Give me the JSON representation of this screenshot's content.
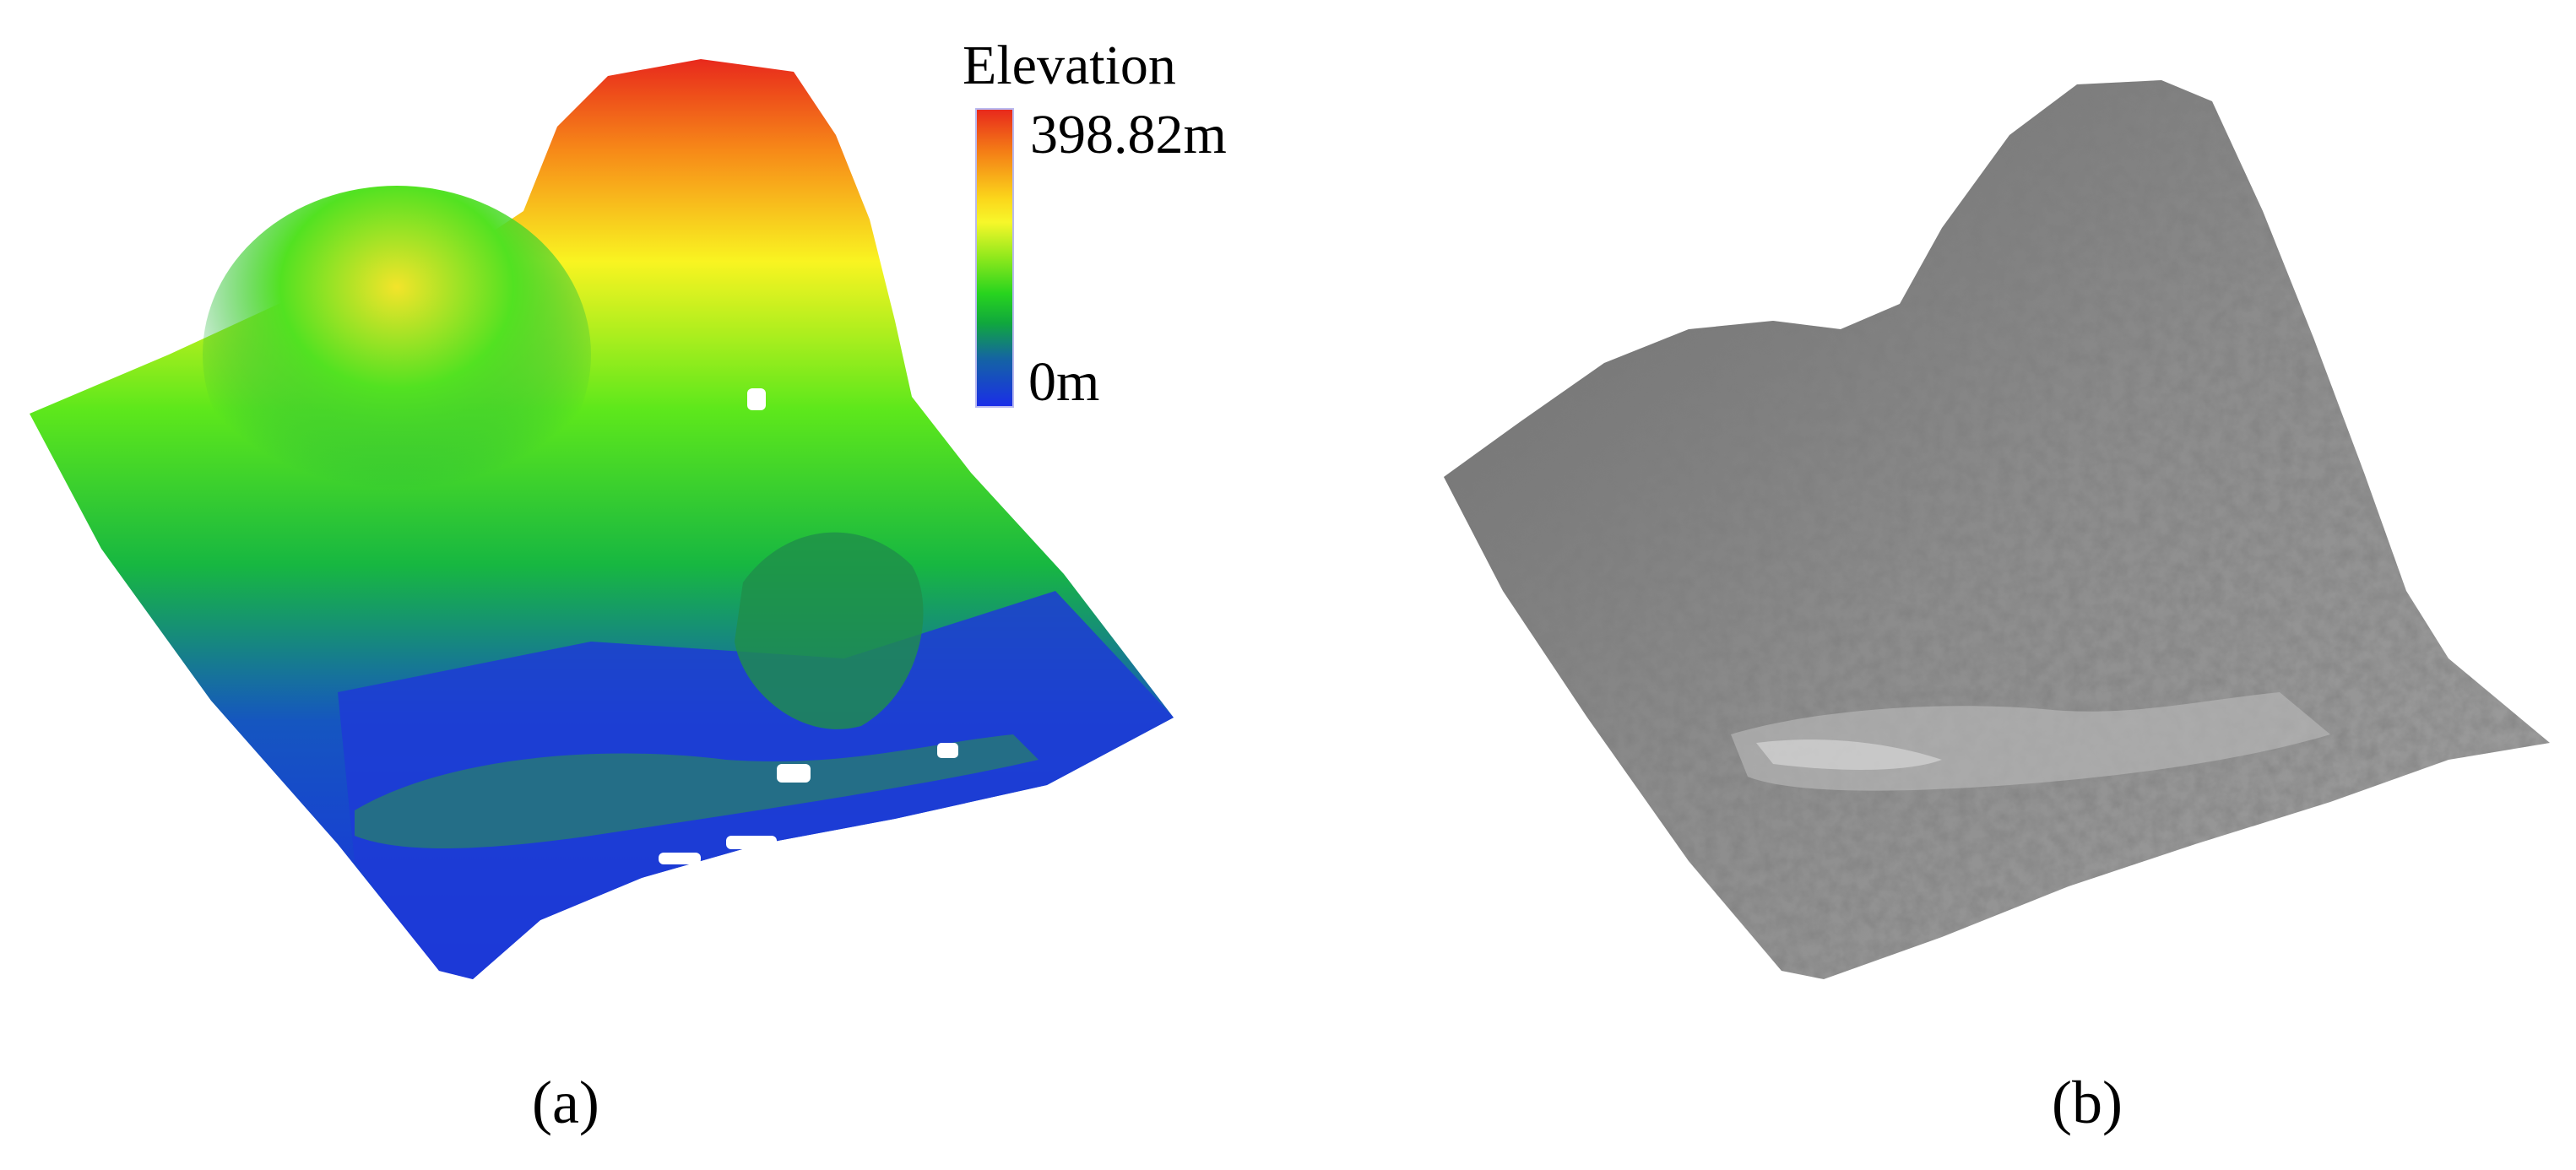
{
  "legend": {
    "title": "Elevation",
    "max_label": "398.82m",
    "min_label": "0m",
    "colors": [
      "#e8291c",
      "#f47d16",
      "#fbd61b",
      "#8ee81c",
      "#28d41e",
      "#1464a3",
      "#1a2ee8"
    ]
  },
  "panels": [
    {
      "caption": "(a)",
      "content": "color-coded elevation point cloud"
    },
    {
      "caption": "(b)",
      "content": "grayscale shaded terrain surface"
    }
  ]
}
